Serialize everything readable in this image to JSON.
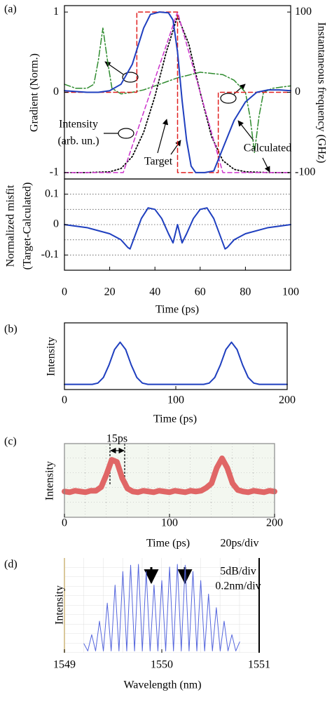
{
  "chart_data": [
    {
      "type": "line",
      "panel_label": "(a)",
      "ylabel": "Gradient (Norm.)",
      "y2label": "Instantaneous frequency (GHz)",
      "xlim": [
        0,
        100
      ],
      "ylim": [
        -1.08,
        1.08
      ],
      "yticks": [
        -1,
        0,
        1
      ],
      "y2lim": [
        -108,
        108
      ],
      "y2ticks": [
        -100,
        0,
        100
      ],
      "annotations": [
        "Intensity",
        "(arb. un.)",
        "Target",
        "Calculated"
      ],
      "series": [
        {
          "color": "#2e8b2e",
          "style": "dashdot",
          "line_width": 1.5,
          "axis": "y2",
          "x": [
            0,
            5,
            10,
            13,
            15,
            17,
            19,
            21,
            25,
            30,
            35,
            40,
            50,
            60,
            70,
            75,
            80,
            82,
            84,
            86,
            88,
            92,
            100
          ],
          "values": [
            10,
            5,
            5,
            10,
            40,
            80,
            40,
            5,
            -2,
            0,
            3,
            8,
            18,
            25,
            22,
            15,
            0,
            -30,
            -75,
            -30,
            0,
            5,
            8
          ]
        },
        {
          "color": "#000000",
          "style": "dotted",
          "line_width": 1.8,
          "x": [
            0,
            10,
            20,
            25,
            30,
            35,
            40,
            45,
            50,
            55,
            60,
            65,
            70,
            75,
            80,
            90,
            100
          ],
          "values": [
            -1,
            -1,
            -0.99,
            -0.95,
            -0.8,
            -0.5,
            -0.05,
            0.5,
            0.95,
            0.6,
            0,
            -0.55,
            -0.85,
            -0.96,
            -0.99,
            -1,
            -1
          ]
        },
        {
          "color": "#cc33cc",
          "style": "dashed",
          "line_width": 1.5,
          "x": [
            0,
            26,
            50,
            70,
            100
          ],
          "values": [
            -1,
            -1,
            1,
            -1,
            -1
          ]
        },
        {
          "color": "#e02020",
          "style": "dashed",
          "line_width": 1.5,
          "x": [
            0,
            32,
            32,
            50,
            50,
            68,
            68,
            100
          ],
          "values": [
            0,
            0,
            1,
            1,
            -1,
            -1,
            0,
            0
          ]
        },
        {
          "color": "#1f3fbf",
          "style": "solid",
          "line_width": 2,
          "x": [
            0,
            10,
            15,
            20,
            25,
            30,
            35,
            38,
            42,
            46,
            48,
            50,
            52,
            54,
            56,
            58,
            62,
            66,
            70,
            75,
            80,
            85,
            90,
            95,
            100
          ],
          "values": [
            0.02,
            0,
            0,
            0.02,
            0.1,
            0.35,
            0.8,
            0.97,
            1,
            0.99,
            0.9,
            0.5,
            -0.1,
            -0.6,
            -0.92,
            -1,
            -1,
            -0.98,
            -0.7,
            -0.35,
            -0.12,
            0,
            0.03,
            0.03,
            0.02
          ]
        }
      ]
    },
    {
      "type": "line",
      "ylabel": [
        "Normalized misfit",
        "(Target-Calculated)"
      ],
      "xlabel": "Time (ps)",
      "xlim": [
        0,
        100
      ],
      "xticks": [
        0,
        20,
        40,
        60,
        80,
        100
      ],
      "ylim": [
        -0.15,
        0.15
      ],
      "yticks": [
        -0.1,
        0,
        0.1
      ],
      "hlines": [
        -0.1,
        -0.05,
        0,
        0.05,
        0.1
      ],
      "series": [
        {
          "color": "#1f3fbf",
          "style": "solid",
          "line_width": 2,
          "x": [
            0,
            10,
            20,
            25,
            28,
            29,
            31,
            34,
            37,
            40,
            43,
            46,
            48,
            49,
            50,
            51,
            52,
            54,
            57,
            60,
            63,
            66,
            69,
            71,
            72,
            75,
            80,
            90,
            100
          ],
          "values": [
            0,
            -0.01,
            -0.03,
            -0.05,
            -0.075,
            -0.08,
            -0.04,
            0.02,
            0.055,
            0.05,
            0.02,
            -0.03,
            -0.06,
            -0.03,
            0,
            -0.03,
            -0.06,
            -0.03,
            0.02,
            0.05,
            0.055,
            0.02,
            -0.04,
            -0.08,
            -0.075,
            -0.05,
            -0.03,
            -0.01,
            0
          ]
        }
      ]
    },
    {
      "type": "line",
      "panel_label": "(b)",
      "ylabel": "Intensity",
      "xlabel": "Time (ps)",
      "xlim": [
        0,
        200
      ],
      "xticks": [
        0,
        100,
        200
      ],
      "ylim": [
        -0.1,
        1.45
      ],
      "series": [
        {
          "color": "#1f3fbf",
          "style": "solid",
          "line_width": 2,
          "x": [
            0,
            5,
            10,
            15,
            20,
            25,
            30,
            35,
            40,
            45,
            50,
            55,
            60,
            65,
            70,
            75,
            80,
            85,
            90,
            95,
            100,
            105,
            110,
            115,
            120,
            125,
            130,
            135,
            140,
            145,
            150,
            155,
            160,
            165,
            170,
            175,
            180,
            185,
            190,
            195,
            200
          ],
          "values": [
            0.02,
            0.02,
            0.02,
            0.02,
            0.02,
            0.02,
            0.05,
            0.18,
            0.47,
            0.83,
            1,
            0.83,
            0.47,
            0.18,
            0.05,
            0.02,
            0.02,
            0.02,
            0.02,
            0.02,
            0.02,
            0.02,
            0.02,
            0.02,
            0.02,
            0.02,
            0.05,
            0.18,
            0.47,
            0.83,
            1,
            0.83,
            0.47,
            0.18,
            0.05,
            0.02,
            0.02,
            0.02,
            0.02,
            0.02,
            0.02
          ]
        }
      ]
    },
    {
      "type": "line",
      "panel_label": "(c)",
      "ylabel": "Intensity",
      "xlabel": "Time (ps)",
      "xlim": [
        0,
        200
      ],
      "xticks": [
        0,
        100,
        200
      ],
      "ylim": [
        0,
        1
      ],
      "annotations": [
        "15ps",
        "20ps/div"
      ],
      "series": [
        {
          "color": "#e06666",
          "style": "solid",
          "line_width": 8,
          "x": [
            0,
            5,
            10,
            15,
            20,
            25,
            30,
            35,
            40,
            45,
            50,
            55,
            60,
            65,
            70,
            75,
            80,
            85,
            90,
            95,
            100,
            105,
            110,
            115,
            120,
            125,
            130,
            135,
            140,
            145,
            150,
            155,
            160,
            165,
            170,
            175,
            180,
            185,
            190,
            195,
            200
          ],
          "values": [
            0.35,
            0.34,
            0.36,
            0.35,
            0.34,
            0.36,
            0.36,
            0.41,
            0.58,
            0.78,
            0.75,
            0.53,
            0.39,
            0.35,
            0.34,
            0.36,
            0.35,
            0.34,
            0.36,
            0.35,
            0.34,
            0.36,
            0.35,
            0.34,
            0.36,
            0.35,
            0.36,
            0.4,
            0.46,
            0.67,
            0.8,
            0.67,
            0.46,
            0.37,
            0.35,
            0.34,
            0.36,
            0.35,
            0.34,
            0.36,
            0.35
          ]
        }
      ]
    },
    {
      "type": "line",
      "panel_label": "(d)",
      "ylabel": "Intensity",
      "xlabel": "Wavelength (nm)",
      "xlim": [
        1549,
        1551
      ],
      "xticks": [
        1549,
        1550,
        1551
      ],
      "ylim": [
        0,
        1.05
      ],
      "annotations": [
        "5dB/div",
        "0.2nm/div"
      ],
      "series": [
        {
          "color": "#5566dd",
          "style": "solid",
          "line_width": 1,
          "x": [
            1549.2,
            1549.24,
            1549.28,
            1549.32,
            1549.36,
            1549.4,
            1549.44,
            1549.48,
            1549.52,
            1549.56,
            1549.6,
            1549.64,
            1549.68,
            1549.72,
            1549.76,
            1549.8,
            1549.84,
            1549.88,
            1549.92,
            1549.96,
            1550.0,
            1550.04,
            1550.08,
            1550.12,
            1550.16,
            1550.2,
            1550.24,
            1550.28,
            1550.32,
            1550.36,
            1550.4,
            1550.44,
            1550.48,
            1550.52,
            1550.56,
            1550.6,
            1550.64,
            1550.68,
            1550.72,
            1550.76,
            1550.8
          ],
          "values": [
            0.1,
            0.02,
            0.2,
            0.02,
            0.35,
            0.02,
            0.55,
            0.02,
            0.75,
            0.02,
            0.9,
            0.02,
            0.97,
            0.02,
            0.98,
            0.02,
            0.9,
            0.02,
            0.75,
            0.02,
            0.8,
            0.02,
            0.95,
            0.02,
            0.98,
            0.02,
            0.97,
            0.02,
            0.9,
            0.02,
            0.8,
            0.02,
            0.65,
            0.02,
            0.5,
            0.02,
            0.35,
            0.02,
            0.2,
            0.02,
            0.12
          ]
        }
      ]
    }
  ]
}
